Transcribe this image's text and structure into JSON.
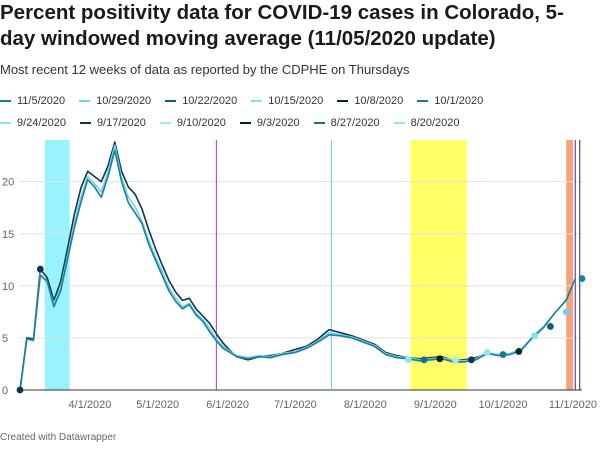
{
  "header": {
    "title": "Percent positivity data for COVID-19 cases in Colorado, 5-day windowed moving average (11/05/2020 update)",
    "subtitle": "Most recent 12 weeks of data as reported by the CDPHE on Thursdays"
  },
  "footer": {
    "credit": "Created with Datawrapper"
  },
  "legend_rows": [
    [
      {
        "name": "11/5/2020",
        "color": "#1a7fa0"
      },
      {
        "name": "10/29/2020",
        "color": "#6fd4e6"
      },
      {
        "name": "10/22/2020",
        "color": "#145e78"
      },
      {
        "name": "10/15/2020",
        "color": "#7ee6f0"
      },
      {
        "name": "10/8/2020",
        "color": "#08243a"
      },
      {
        "name": "10/1/2020",
        "color": "#1f7393"
      }
    ],
    [
      {
        "name": "9/24/2020",
        "color": "#8ee4f0"
      },
      {
        "name": "9/17/2020",
        "color": "#0f3550"
      },
      {
        "name": "9/10/2020",
        "color": "#a4ecf4"
      },
      {
        "name": "9/3/2020",
        "color": "#051a2a"
      },
      {
        "name": "8/27/2020",
        "color": "#1a6d8d"
      },
      {
        "name": "8/20/2020",
        "color": "#93e2ef"
      }
    ]
  ],
  "chart_data": {
    "type": "line",
    "title": "Percent positivity data for COVID-19 cases in Colorado, 5-day windowed moving average (11/05/2020 update)",
    "x_axis": {
      "type": "date",
      "range": [
        "2020-03-01",
        "2020-11-05"
      ],
      "ticks": [
        "4/1/2020",
        "5/1/2020",
        "6/1/2020",
        "7/1/2020",
        "8/1/2020",
        "9/1/2020",
        "10/1/2020",
        "11/1/2020"
      ]
    },
    "y_axis": {
      "range": [
        0,
        24
      ],
      "ticks": [
        0,
        5,
        10,
        15,
        20
      ]
    },
    "grid": true,
    "shaded_ranges": [
      {
        "from": "2020-03-12",
        "to": "2020-03-23",
        "color": "#99f3ff"
      },
      {
        "from": "2020-08-21",
        "to": "2020-09-15",
        "color": "#ffff66"
      },
      {
        "from": "2020-10-29",
        "to": "2020-11-01",
        "color": "#f7a07a"
      }
    ],
    "reference_lines": [
      {
        "x": "2020-05-27",
        "color": "#9b3cc0"
      },
      {
        "x": "2020-07-17",
        "color": "#5fd3e6"
      },
      {
        "x": "2020-11-02",
        "color": "#5a1f6e"
      },
      {
        "x": "2020-11-04",
        "color": "#1a2a80"
      }
    ],
    "series": [
      {
        "name": "11/5/2020",
        "color": "#1a7fa0",
        "points": [
          [
            "2020-03-01",
            0
          ],
          [
            "2020-03-04",
            4.9
          ],
          [
            "2020-03-07",
            4.8
          ],
          [
            "2020-03-10",
            11
          ],
          [
            "2020-03-13",
            10.5
          ],
          [
            "2020-03-16",
            8
          ],
          [
            "2020-03-19",
            9.5
          ],
          [
            "2020-03-22",
            12.5
          ],
          [
            "2020-03-25",
            15.5
          ],
          [
            "2020-03-28",
            18
          ],
          [
            "2020-03-31",
            20.2
          ],
          [
            "2020-04-03",
            19.5
          ],
          [
            "2020-04-06",
            18.5
          ],
          [
            "2020-04-09",
            20.5
          ],
          [
            "2020-04-12",
            23
          ],
          [
            "2020-04-15",
            20
          ],
          [
            "2020-04-18",
            18
          ],
          [
            "2020-04-21",
            17
          ],
          [
            "2020-04-24",
            16
          ],
          [
            "2020-04-27",
            14
          ],
          [
            "2020-04-30",
            12.5
          ],
          [
            "2020-05-03",
            11
          ],
          [
            "2020-05-06",
            9.5
          ],
          [
            "2020-05-09",
            8.5
          ],
          [
            "2020-05-12",
            7.8
          ],
          [
            "2020-05-15",
            8.2
          ],
          [
            "2020-05-18",
            7.2
          ],
          [
            "2020-05-21",
            6.6
          ],
          [
            "2020-05-24",
            5.6
          ],
          [
            "2020-05-27",
            4.7
          ],
          [
            "2020-05-30",
            4
          ],
          [
            "2020-06-02",
            3.6
          ],
          [
            "2020-06-05",
            3.2
          ],
          [
            "2020-06-10",
            3
          ],
          [
            "2020-06-15",
            3.2
          ],
          [
            "2020-06-20",
            3.1
          ],
          [
            "2020-06-25",
            3.4
          ],
          [
            "2020-07-01",
            3.6
          ],
          [
            "2020-07-06",
            4
          ],
          [
            "2020-07-11",
            4.6
          ],
          [
            "2020-07-16",
            5.3
          ],
          [
            "2020-07-21",
            5.2
          ],
          [
            "2020-07-26",
            5
          ],
          [
            "2020-07-31",
            4.6
          ],
          [
            "2020-08-05",
            4.2
          ],
          [
            "2020-08-10",
            3.4
          ],
          [
            "2020-08-15",
            3.1
          ],
          [
            "2020-08-20",
            3
          ],
          [
            "2020-08-25",
            2.8
          ],
          [
            "2020-08-30",
            2.9
          ],
          [
            "2020-09-04",
            3
          ],
          [
            "2020-09-09",
            2.7
          ],
          [
            "2020-09-14",
            2.7
          ],
          [
            "2020-09-19",
            2.9
          ],
          [
            "2020-09-24",
            3.5
          ],
          [
            "2020-09-29",
            3.3
          ],
          [
            "2020-10-04",
            3.4
          ],
          [
            "2020-10-09",
            3.8
          ],
          [
            "2020-10-14",
            5
          ],
          [
            "2020-10-19",
            6
          ],
          [
            "2020-10-24",
            7.4
          ],
          [
            "2020-10-29",
            8.6
          ],
          [
            "2020-11-02",
            10.7
          ]
        ]
      },
      {
        "name": "10/29/2020",
        "color": "#6fd4e6",
        "points": [
          [
            "2020-03-01",
            0
          ],
          [
            "2020-03-04",
            4.9
          ],
          [
            "2020-03-07",
            4.7
          ],
          [
            "2020-03-10",
            11.2
          ],
          [
            "2020-03-13",
            10.2
          ],
          [
            "2020-03-16",
            8.3
          ],
          [
            "2020-03-19",
            9.8
          ],
          [
            "2020-03-22",
            12.8
          ],
          [
            "2020-03-25",
            16
          ],
          [
            "2020-03-28",
            18.5
          ],
          [
            "2020-03-31",
            20.5
          ],
          [
            "2020-04-03",
            19.8
          ],
          [
            "2020-04-06",
            19
          ],
          [
            "2020-04-09",
            21
          ],
          [
            "2020-04-12",
            23.5
          ],
          [
            "2020-04-15",
            20.4
          ],
          [
            "2020-04-18",
            18.5
          ],
          [
            "2020-04-21",
            17.6
          ],
          [
            "2020-04-24",
            16.2
          ],
          [
            "2020-04-27",
            14.4
          ],
          [
            "2020-04-30",
            12.8
          ],
          [
            "2020-05-03",
            11.4
          ],
          [
            "2020-05-06",
            9.8
          ],
          [
            "2020-05-09",
            8.8
          ],
          [
            "2020-05-12",
            8
          ],
          [
            "2020-05-15",
            8.3
          ],
          [
            "2020-05-18",
            7.4
          ],
          [
            "2020-05-21",
            6.8
          ],
          [
            "2020-05-24",
            5.9
          ],
          [
            "2020-05-27",
            4.9
          ],
          [
            "2020-05-30",
            4.2
          ],
          [
            "2020-06-02",
            3.7
          ],
          [
            "2020-06-05",
            3.3
          ],
          [
            "2020-06-10",
            3.1
          ],
          [
            "2020-06-15",
            3.3
          ],
          [
            "2020-06-20",
            3.2
          ],
          [
            "2020-06-25",
            3.5
          ],
          [
            "2020-07-01",
            3.7
          ],
          [
            "2020-07-06",
            4.1
          ],
          [
            "2020-07-11",
            4.7
          ],
          [
            "2020-07-16",
            5.5
          ],
          [
            "2020-07-21",
            5.3
          ],
          [
            "2020-07-26",
            5.1
          ],
          [
            "2020-07-31",
            4.7
          ],
          [
            "2020-08-05",
            4.3
          ],
          [
            "2020-08-10",
            3.5
          ],
          [
            "2020-08-15",
            3.2
          ],
          [
            "2020-08-20",
            3.1
          ],
          [
            "2020-08-25",
            2.9
          ],
          [
            "2020-08-30",
            3
          ],
          [
            "2020-09-04",
            3.1
          ],
          [
            "2020-09-09",
            2.8
          ],
          [
            "2020-09-14",
            2.8
          ],
          [
            "2020-09-19",
            3
          ],
          [
            "2020-09-24",
            3.6
          ],
          [
            "2020-09-29",
            3.4
          ],
          [
            "2020-10-04",
            3.5
          ],
          [
            "2020-10-09",
            3.9
          ],
          [
            "2020-10-14",
            5.1
          ],
          [
            "2020-10-19",
            6.1
          ],
          [
            "2020-10-24",
            7.4
          ],
          [
            "2020-10-29",
            8.7
          ]
        ]
      },
      {
        "name": "10/1/2020",
        "color": "#0f3550",
        "points": [
          [
            "2020-03-01",
            0
          ],
          [
            "2020-03-04",
            5
          ],
          [
            "2020-03-07",
            4.9
          ],
          [
            "2020-03-10",
            11.6
          ],
          [
            "2020-03-13",
            10.8
          ],
          [
            "2020-03-16",
            8.6
          ],
          [
            "2020-03-19",
            10.4
          ],
          [
            "2020-03-22",
            13.5
          ],
          [
            "2020-03-25",
            16.8
          ],
          [
            "2020-03-28",
            19.4
          ],
          [
            "2020-03-31",
            21
          ],
          [
            "2020-04-03",
            20.5
          ],
          [
            "2020-04-06",
            20
          ],
          [
            "2020-04-09",
            21.5
          ],
          [
            "2020-04-12",
            23.8
          ],
          [
            "2020-04-15",
            21
          ],
          [
            "2020-04-18",
            19.5
          ],
          [
            "2020-04-21",
            18.8
          ],
          [
            "2020-04-24",
            17.4
          ],
          [
            "2020-04-27",
            15.4
          ],
          [
            "2020-04-30",
            13.6
          ],
          [
            "2020-05-03",
            12
          ],
          [
            "2020-05-06",
            10.5
          ],
          [
            "2020-05-09",
            9.4
          ],
          [
            "2020-05-12",
            8.6
          ],
          [
            "2020-05-15",
            8.8
          ],
          [
            "2020-05-18",
            7.8
          ],
          [
            "2020-05-21",
            7.1
          ],
          [
            "2020-05-24",
            6.4
          ],
          [
            "2020-05-27",
            5.4
          ],
          [
            "2020-05-30",
            4.5
          ],
          [
            "2020-06-02",
            3.8
          ],
          [
            "2020-06-05",
            3.2
          ],
          [
            "2020-06-10",
            2.9
          ],
          [
            "2020-06-15",
            3.2
          ],
          [
            "2020-06-20",
            3.3
          ],
          [
            "2020-06-25",
            3.5
          ],
          [
            "2020-07-01",
            3.9
          ],
          [
            "2020-07-06",
            4.2
          ],
          [
            "2020-07-11",
            4.9
          ],
          [
            "2020-07-16",
            5.8
          ],
          [
            "2020-07-21",
            5.5
          ],
          [
            "2020-07-26",
            5.2
          ],
          [
            "2020-07-31",
            4.8
          ],
          [
            "2020-08-05",
            4.4
          ],
          [
            "2020-08-10",
            3.6
          ],
          [
            "2020-08-15",
            3.3
          ],
          [
            "2020-08-20",
            3.1
          ],
          [
            "2020-08-25",
            3
          ],
          [
            "2020-08-30",
            3.1
          ],
          [
            "2020-09-04",
            3.2
          ],
          [
            "2020-09-09",
            2.8
          ],
          [
            "2020-09-14",
            2.9
          ],
          [
            "2020-09-19",
            3.1
          ],
          [
            "2020-09-24",
            3.5
          ],
          [
            "2020-09-29",
            3.4
          ]
        ]
      }
    ],
    "markers": [
      {
        "x": "2020-03-01",
        "y": 0,
        "color": "#0f3550"
      },
      {
        "x": "2020-03-10",
        "y": 11.6,
        "color": "#0f3550"
      },
      {
        "x": "2020-08-20",
        "y": 2.9,
        "color": "#93e2ef"
      },
      {
        "x": "2020-08-27",
        "y": 2.9,
        "color": "#1a6d8d"
      },
      {
        "x": "2020-09-03",
        "y": 3.0,
        "color": "#051a2a"
      },
      {
        "x": "2020-09-10",
        "y": 2.9,
        "color": "#a4ecf4"
      },
      {
        "x": "2020-09-17",
        "y": 2.9,
        "color": "#0f3550"
      },
      {
        "x": "2020-09-24",
        "y": 3.6,
        "color": "#8ee4f0"
      },
      {
        "x": "2020-10-01",
        "y": 3.4,
        "color": "#1f7393"
      },
      {
        "x": "2020-10-08",
        "y": 3.7,
        "color": "#08243a"
      },
      {
        "x": "2020-10-15",
        "y": 5.2,
        "color": "#7ee6f0"
      },
      {
        "x": "2020-10-22",
        "y": 6.1,
        "color": "#145e78"
      },
      {
        "x": "2020-10-29",
        "y": 7.5,
        "color": "#6fd4e6"
      },
      {
        "x": "2020-11-05",
        "y": 10.7,
        "color": "#1a7fa0"
      }
    ]
  }
}
